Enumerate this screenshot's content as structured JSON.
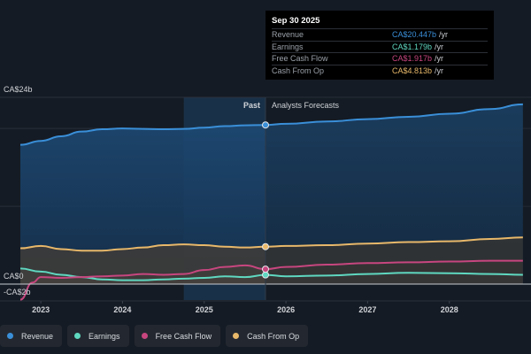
{
  "tooltip": {
    "date": "Sep 30 2025",
    "rows": [
      {
        "label": "Revenue",
        "value": "CA$20.447b",
        "unit": "/yr",
        "color": "#3a8fd8"
      },
      {
        "label": "Earnings",
        "value": "CA$1.179b",
        "unit": "/yr",
        "color": "#5fd8c0"
      },
      {
        "label": "Free Cash Flow",
        "value": "CA$1.917b",
        "unit": "/yr",
        "color": "#c7467f"
      },
      {
        "label": "Cash From Op",
        "value": "CA$4.813b",
        "unit": "/yr",
        "color": "#e8b86a"
      }
    ]
  },
  "legend": [
    {
      "label": "Revenue",
      "color": "#3a8fd8",
      "icon": "dot-icon"
    },
    {
      "label": "Earnings",
      "color": "#5fd8c0",
      "icon": "dot-icon"
    },
    {
      "label": "Free Cash Flow",
      "color": "#c7467f",
      "icon": "dot-icon"
    },
    {
      "label": "Cash From Op",
      "color": "#e8b86a",
      "icon": "dot-icon"
    }
  ],
  "chart_data": {
    "type": "area",
    "title": "",
    "xlabel": "",
    "ylabel": "",
    "unit": "CA$ billions",
    "ylim": [
      -2,
      24
    ],
    "y_ticks": [
      {
        "value": 24,
        "label": "CA$24b"
      },
      {
        "value": 0,
        "label": "CA$0"
      },
      {
        "value": -2,
        "label": "-CA$2b"
      }
    ],
    "gridlines": [
      24,
      20,
      10,
      0
    ],
    "x_ticks": [
      "2023",
      "2024",
      "2025",
      "2026",
      "2027",
      "2028"
    ],
    "x_tick_values": [
      2023.0,
      2024.0,
      2025.0,
      2026.0,
      2027.0,
      2028.0
    ],
    "xlim": [
      2022.75,
      2028.9
    ],
    "divider": {
      "x": 2025.75,
      "past_label": "Past",
      "forecast_label": "Analysts Forecasts"
    },
    "highlight_band": [
      2024.75,
      2025.75
    ],
    "series": [
      {
        "name": "Revenue",
        "color": "#3a8fd8",
        "x": [
          2022.75,
          2023.0,
          2023.25,
          2023.5,
          2023.75,
          2024.0,
          2024.25,
          2024.5,
          2024.75,
          2025.0,
          2025.25,
          2025.5,
          2025.75,
          2026.0,
          2026.5,
          2027.0,
          2027.5,
          2028.0,
          2028.5,
          2028.9
        ],
        "values": [
          17.9,
          18.4,
          19.0,
          19.6,
          19.9,
          20.0,
          19.95,
          19.9,
          19.95,
          20.1,
          20.3,
          20.4,
          20.45,
          20.6,
          20.9,
          21.2,
          21.5,
          21.9,
          22.5,
          23.1
        ]
      },
      {
        "name": "Earnings",
        "color": "#5fd8c0",
        "x": [
          2022.75,
          2023.0,
          2023.25,
          2023.5,
          2023.75,
          2024.0,
          2024.25,
          2024.5,
          2024.75,
          2025.0,
          2025.25,
          2025.5,
          2025.75,
          2026.0,
          2026.5,
          2027.0,
          2027.5,
          2028.0,
          2028.5,
          2028.9
        ],
        "values": [
          2.0,
          1.6,
          1.2,
          0.9,
          0.6,
          0.5,
          0.5,
          0.6,
          0.7,
          0.8,
          1.0,
          0.9,
          1.18,
          1.0,
          1.1,
          1.3,
          1.45,
          1.4,
          1.3,
          1.2
        ]
      },
      {
        "name": "Free Cash Flow",
        "color": "#c7467f",
        "x": [
          2022.75,
          2022.9,
          2023.0,
          2023.25,
          2023.5,
          2023.75,
          2024.0,
          2024.25,
          2024.5,
          2024.75,
          2025.0,
          2025.25,
          2025.5,
          2025.75,
          2026.0,
          2026.5,
          2027.0,
          2027.5,
          2028.0,
          2028.5,
          2028.9
        ],
        "values": [
          -2.0,
          0.2,
          0.9,
          0.8,
          0.9,
          1.0,
          1.1,
          1.3,
          1.2,
          1.3,
          1.8,
          2.2,
          2.4,
          1.92,
          2.2,
          2.5,
          2.7,
          2.8,
          2.9,
          3.0,
          3.0
        ]
      },
      {
        "name": "Cash From Op",
        "color": "#e8b86a",
        "x": [
          2022.75,
          2023.0,
          2023.25,
          2023.5,
          2023.75,
          2024.0,
          2024.25,
          2024.5,
          2024.75,
          2025.0,
          2025.25,
          2025.5,
          2025.75,
          2026.0,
          2026.5,
          2027.0,
          2027.5,
          2028.0,
          2028.5,
          2028.9
        ],
        "values": [
          4.6,
          4.9,
          4.5,
          4.3,
          4.3,
          4.5,
          4.7,
          5.0,
          5.1,
          5.0,
          4.8,
          4.7,
          4.81,
          4.9,
          5.0,
          5.2,
          5.4,
          5.5,
          5.8,
          6.0
        ]
      }
    ]
  }
}
